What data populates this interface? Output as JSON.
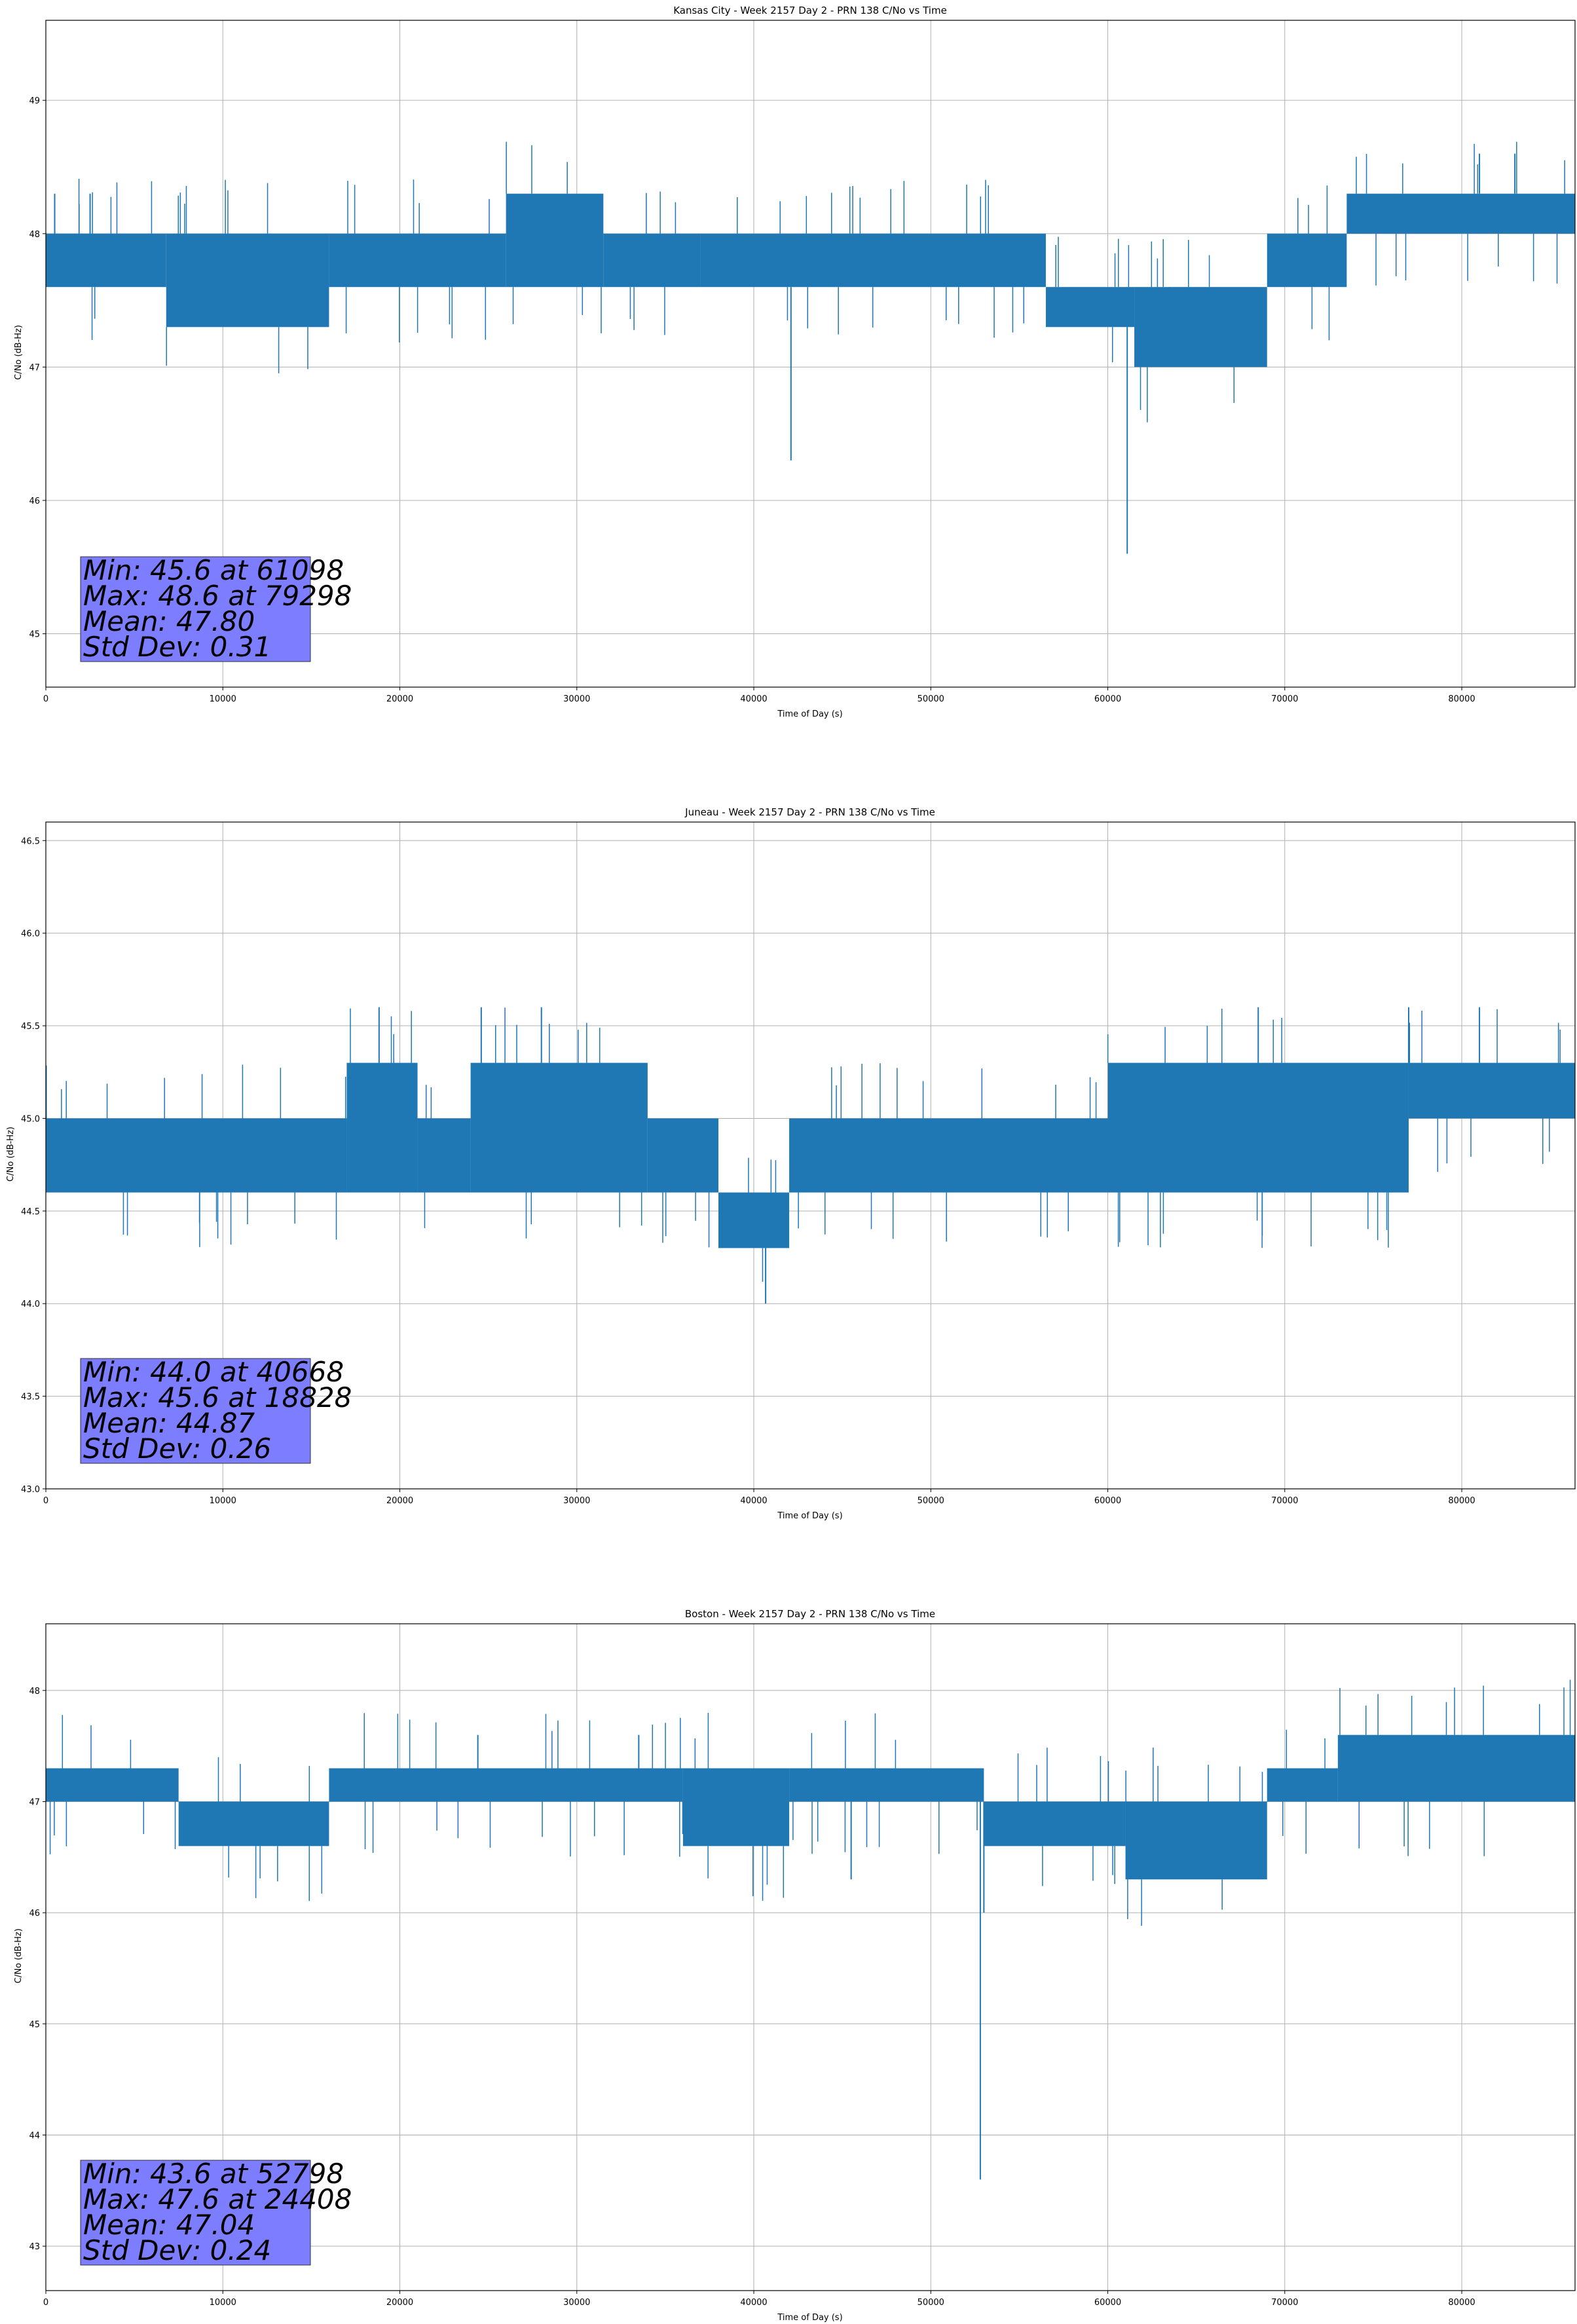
{
  "chart_data": [
    {
      "type": "line",
      "title": "Kansas City - Week 2157 Day 2 - PRN 138 C/No vs Time",
      "xlabel": "Time of Day (s)",
      "ylabel": "C/No (dB-Hz)",
      "xlim": [
        0,
        86400
      ],
      "ylim": [
        44.6,
        49.6
      ],
      "xticks": [
        0,
        10000,
        20000,
        30000,
        40000,
        50000,
        60000,
        70000,
        80000
      ],
      "yticks": [
        45,
        46,
        47,
        48,
        49
      ],
      "grid": true,
      "series_color": "#1f77b4",
      "bands": [
        {
          "x": [
            0,
            6800
          ],
          "range": [
            47.6,
            48.0
          ]
        },
        {
          "x": [
            6800,
            16000
          ],
          "range": [
            47.3,
            48.0
          ]
        },
        {
          "x": [
            16000,
            26000
          ],
          "range": [
            47.6,
            48.0
          ]
        },
        {
          "x": [
            26000,
            31500
          ],
          "range": [
            47.6,
            48.3
          ]
        },
        {
          "x": [
            31500,
            37000
          ],
          "range": [
            47.6,
            48.0
          ]
        },
        {
          "x": [
            37000,
            56500
          ],
          "range": [
            47.6,
            48.0
          ]
        },
        {
          "x": [
            56500,
            61500
          ],
          "range": [
            47.3,
            47.6
          ]
        },
        {
          "x": [
            61500,
            69000
          ],
          "range": [
            47.0,
            47.6
          ]
        },
        {
          "x": [
            69000,
            73500
          ],
          "range": [
            47.6,
            48.0
          ]
        },
        {
          "x": [
            73500,
            79000
          ],
          "range": [
            48.0,
            48.3
          ]
        },
        {
          "x": [
            79000,
            86400
          ],
          "range": [
            48.0,
            48.3
          ]
        }
      ],
      "spikes": [
        {
          "x": 42100,
          "y": 46.3
        },
        {
          "x": 61098,
          "y": 45.6
        },
        {
          "x": 63500,
          "y": 47.0
        },
        {
          "x": 500,
          "y": 48.3
        },
        {
          "x": 2500,
          "y": 48.3
        },
        {
          "x": 81000,
          "y": 48.6
        },
        {
          "x": 83000,
          "y": 48.6
        }
      ],
      "stats": {
        "line1": "Min: 45.6 at 61098",
        "line2": "Max: 48.6 at 79298",
        "line3": "Mean: 47.80",
        "line4": "Std Dev: 0.31"
      }
    },
    {
      "type": "line",
      "title": "Juneau - Week 2157 Day 2 - PRN 138 C/No vs Time",
      "xlabel": "Time of Day (s)",
      "ylabel": "C/No (dB-Hz)",
      "xlim": [
        0,
        86400
      ],
      "ylim": [
        43.0,
        46.6
      ],
      "xticks": [
        0,
        10000,
        20000,
        30000,
        40000,
        50000,
        60000,
        70000,
        80000
      ],
      "yticks": [
        43.0,
        43.5,
        44.0,
        44.5,
        45.0,
        45.5,
        46.0,
        46.5
      ],
      "grid": true,
      "series_color": "#1f77b4",
      "bands": [
        {
          "x": [
            0,
            17000
          ],
          "range": [
            44.6,
            45.0
          ]
        },
        {
          "x": [
            17000,
            21000
          ],
          "range": [
            44.6,
            45.3
          ]
        },
        {
          "x": [
            21000,
            24000
          ],
          "range": [
            44.6,
            45.0
          ]
        },
        {
          "x": [
            24000,
            34000
          ],
          "range": [
            44.6,
            45.3
          ]
        },
        {
          "x": [
            34000,
            38000
          ],
          "range": [
            44.6,
            45.0
          ]
        },
        {
          "x": [
            38000,
            42000
          ],
          "range": [
            44.3,
            44.6
          ]
        },
        {
          "x": [
            42000,
            60000
          ],
          "range": [
            44.6,
            45.0
          ]
        },
        {
          "x": [
            60000,
            77000
          ],
          "range": [
            44.6,
            45.3
          ]
        },
        {
          "x": [
            77000,
            86400
          ],
          "range": [
            45.0,
            45.3
          ]
        }
      ],
      "spikes": [
        {
          "x": 40668,
          "y": 44.0
        },
        {
          "x": 18828,
          "y": 45.6
        },
        {
          "x": 24600,
          "y": 45.6
        },
        {
          "x": 28000,
          "y": 45.6
        },
        {
          "x": 68500,
          "y": 45.6
        },
        {
          "x": 77000,
          "y": 45.6
        },
        {
          "x": 81000,
          "y": 45.6
        }
      ],
      "stats": {
        "line1": "Min: 44.0 at 40668",
        "line2": "Max: 45.6 at 18828",
        "line3": "Mean: 44.87",
        "line4": "Std Dev: 0.26"
      }
    },
    {
      "type": "line",
      "title": "Boston - Week 2157 Day 2 - PRN 138 C/No vs Time",
      "xlabel": "Time of Day (s)",
      "ylabel": "C/No (dB-Hz)",
      "xlim": [
        0,
        86400
      ],
      "ylim": [
        42.6,
        48.6
      ],
      "xticks": [
        0,
        10000,
        20000,
        30000,
        40000,
        50000,
        60000,
        70000,
        80000
      ],
      "yticks": [
        43,
        44,
        45,
        46,
        47,
        48
      ],
      "grid": true,
      "series_color": "#1f77b4",
      "bands": [
        {
          "x": [
            0,
            7500
          ],
          "range": [
            47.0,
            47.3
          ]
        },
        {
          "x": [
            7500,
            16000
          ],
          "range": [
            46.6,
            47.0
          ]
        },
        {
          "x": [
            16000,
            36000
          ],
          "range": [
            47.0,
            47.3
          ]
        },
        {
          "x": [
            36000,
            42000
          ],
          "range": [
            46.6,
            47.3
          ]
        },
        {
          "x": [
            42000,
            53000
          ],
          "range": [
            47.0,
            47.3
          ]
        },
        {
          "x": [
            53000,
            61000
          ],
          "range": [
            46.6,
            47.0
          ]
        },
        {
          "x": [
            61000,
            69000
          ],
          "range": [
            46.3,
            47.0
          ]
        },
        {
          "x": [
            69000,
            73000
          ],
          "range": [
            47.0,
            47.3
          ]
        },
        {
          "x": [
            73000,
            86400
          ],
          "range": [
            47.0,
            47.6
          ]
        }
      ],
      "spikes": [
        {
          "x": 52798,
          "y": 43.6
        },
        {
          "x": 53000,
          "y": 46.0
        },
        {
          "x": 24408,
          "y": 47.6
        },
        {
          "x": 33500,
          "y": 47.6
        },
        {
          "x": 45500,
          "y": 46.3
        }
      ],
      "stats": {
        "line1": "Min: 43.6 at 52798",
        "line2": "Max: 47.6 at 24408",
        "line3": "Mean: 47.04",
        "line4": "Std Dev: 0.24"
      }
    }
  ]
}
